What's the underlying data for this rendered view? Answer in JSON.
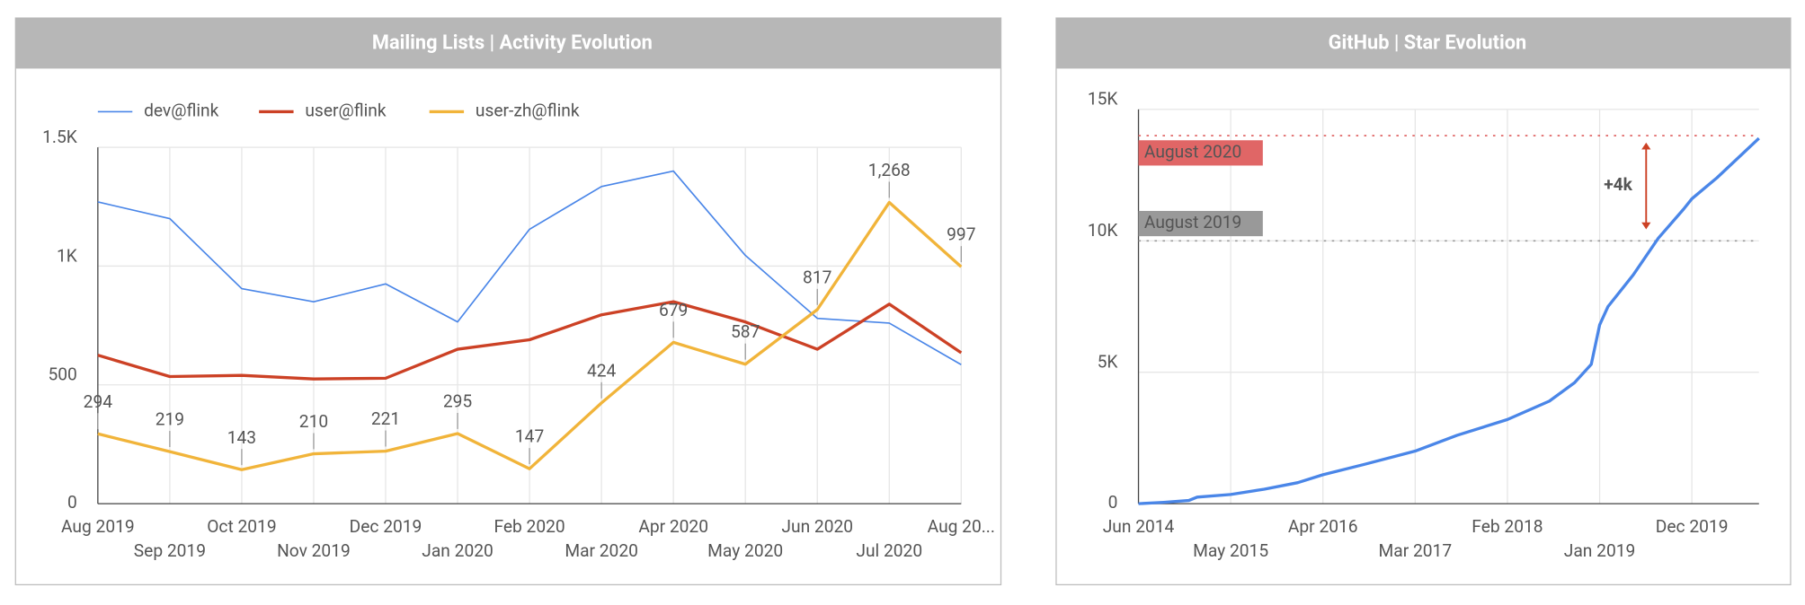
{
  "chart_data": [
    {
      "type": "line",
      "title": "Mailing Lists | Activity Evolution",
      "categories": [
        "Aug 2019",
        "Sep 2019",
        "Oct 2019",
        "Nov 2019",
        "Dec 2019",
        "Jan 2020",
        "Feb 2020",
        "Mar 2020",
        "Apr 2020",
        "May 2020",
        "Jun 2020",
        "Jul 2020",
        "Aug 20..."
      ],
      "series": [
        {
          "name": "dev@flink",
          "color": "#4a86e8",
          "width": 1.3,
          "values": [
            1270,
            1200,
            905,
            850,
            925,
            765,
            1155,
            1335,
            1400,
            1045,
            780,
            760,
            585
          ]
        },
        {
          "name": "user@flink",
          "color": "#cc4125",
          "width": 2.6,
          "values": [
            625,
            535,
            540,
            525,
            528,
            650,
            690,
            795,
            850,
            765,
            650,
            840,
            635
          ]
        },
        {
          "name": "user-zh@flink",
          "color": "#f1b43a",
          "width": 2.6,
          "values": [
            294,
            219,
            143,
            210,
            221,
            295,
            147,
            424,
            679,
            587,
            817,
            1268,
            997
          ],
          "value_labels": [
            "294",
            "219",
            "143",
            "210",
            "221",
            "295",
            "147",
            "424",
            "679",
            "587",
            "817",
            "1,268",
            "997"
          ]
        }
      ],
      "ylim": [
        0,
        1500
      ],
      "yticks": [
        0,
        500,
        {
          "value": 1000,
          "label": "1K"
        },
        {
          "value": 1500,
          "label": "1.5K"
        }
      ],
      "grid": true,
      "legend": "top"
    },
    {
      "type": "line",
      "title": "GitHub | Star Evolution",
      "x": [
        "2014-06",
        "2014-09",
        "2014-12",
        "2015-01",
        "2015-05",
        "2015-09",
        "2016-01",
        "2016-04",
        "2016-09",
        "2017-03",
        "2017-08",
        "2018-02",
        "2018-07",
        "2018-10",
        "2018-12",
        "2019-01",
        "2019-02",
        "2019-05",
        "2019-08",
        "2019-11",
        "2019-12",
        "2020-03",
        "2020-06",
        "2020-08"
      ],
      "series": [
        {
          "color": "#4a86e8",
          "width": 2.6,
          "values": [
            0,
            50,
            120,
            250,
            350,
            550,
            800,
            1100,
            1500,
            2000,
            2600,
            3200,
            3900,
            4600,
            5300,
            6800,
            7500,
            8700,
            10100,
            11200,
            11600,
            12400,
            13300,
            13900
          ]
        }
      ],
      "xlim": [
        "2014-06",
        "2020-08"
      ],
      "xticks": [
        {
          "value": "2014-06",
          "label": "Jun 2014"
        },
        {
          "value": "2015-05",
          "label": "May 2015"
        },
        {
          "value": "2016-04",
          "label": "Apr 2016"
        },
        {
          "value": "2017-03",
          "label": "Mar 2017"
        },
        {
          "value": "2018-02",
          "label": "Feb 2018"
        },
        {
          "value": "2019-01",
          "label": "Jan 2019"
        },
        {
          "value": "2019-12",
          "label": "Dec 2019"
        }
      ],
      "ylim": [
        0,
        15000
      ],
      "yticks": [
        0,
        {
          "value": 5000,
          "label": "5K"
        },
        {
          "value": 10000,
          "label": "10K"
        },
        {
          "value": 15000,
          "label": "15K"
        }
      ],
      "grid": true,
      "reference_lines": [
        {
          "value": 14000,
          "label": "August 2020",
          "color": "#e06666"
        },
        {
          "value": 10000,
          "label": "August 2019",
          "color": "#999999"
        }
      ],
      "annotation": "+4k"
    }
  ]
}
